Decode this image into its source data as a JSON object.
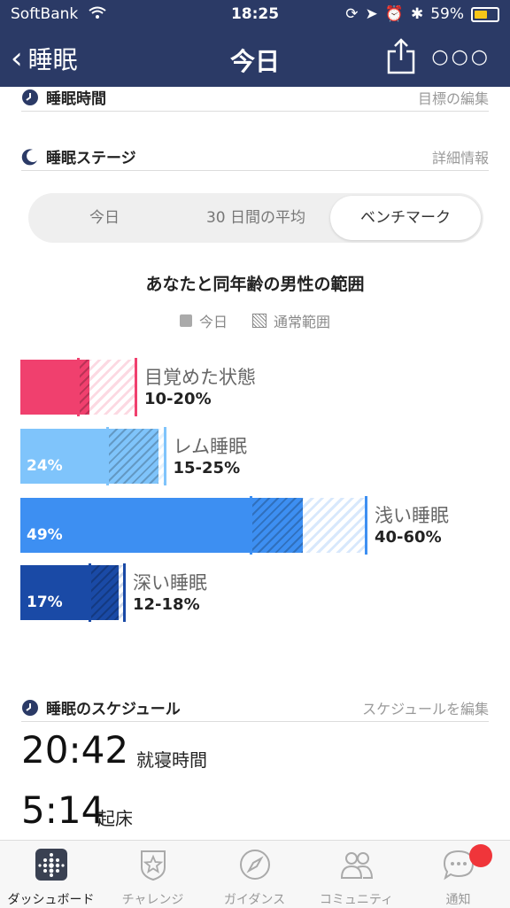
{
  "status_bar": {
    "carrier": "SoftBank",
    "time": "18:25",
    "battery": "59%"
  },
  "nav": {
    "back_label": "睡眠",
    "title": "今日"
  },
  "sleep_time": {
    "label": "睡眠時間",
    "action": "目標の編集"
  },
  "stages_header": {
    "label": "睡眠ステージ",
    "action": "詳細情報"
  },
  "segmented": {
    "tabs": [
      "今日",
      "30 日間の平均",
      "ベンチマーク"
    ],
    "active_index": 2
  },
  "benchmark": {
    "title": "あなたと同年齢の男性の範囲",
    "legend": {
      "today": "今日",
      "range": "通常範囲"
    }
  },
  "stages": [
    {
      "name": "目覚めた状態",
      "range_text": "10-20%",
      "pct_text": "",
      "pct": 12,
      "range_min": 10,
      "range_max": 20,
      "color": "#f0406e"
    },
    {
      "name": "レム睡眠",
      "range_text": "15-25%",
      "pct_text": "24%",
      "pct": 24,
      "range_min": 15,
      "range_max": 25,
      "color": "#7fc4fb"
    },
    {
      "name": "浅い睡眠",
      "range_text": "40-60%",
      "pct_text": "49%",
      "pct": 49,
      "range_min": 40,
      "range_max": 60,
      "color": "#3d8ff2"
    },
    {
      "name": "深い睡眠",
      "range_text": "12-18%",
      "pct_text": "17%",
      "pct": 17,
      "range_min": 12,
      "range_max": 18,
      "color": "#1a4aa6"
    }
  ],
  "schedule": {
    "label": "睡眠のスケジュール",
    "action": "スケジュールを編集",
    "bedtime": "20:42",
    "bedtime_label": "就寝時間",
    "wake": "5:14",
    "wake_label": "起床"
  },
  "tabbar": {
    "items": [
      "ダッシュボード",
      "チャレンジ",
      "ガイダンス",
      "コミュニティ",
      "通知"
    ],
    "active_index": 0
  },
  "colors": {
    "header": "#2b3a66",
    "badge": "#f0353a"
  }
}
